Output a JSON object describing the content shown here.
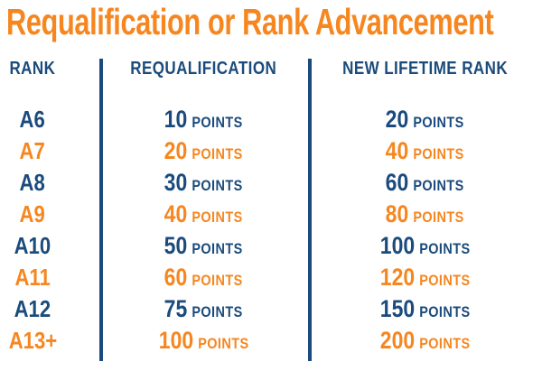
{
  "title": "Requalification or Rank Advancement",
  "colors": {
    "orange": "#F6861F",
    "navy": "#1B4B7C",
    "background": "#FFFFFF"
  },
  "chart_data": {
    "type": "table",
    "title": "Requalification or Rank Advancement",
    "columns": [
      "RANK",
      "REQUALIFICATION",
      "NEW LIFETIME RANK"
    ],
    "unit_label": "POINTS",
    "row_color_pattern": [
      "navy",
      "orange"
    ],
    "rows": [
      {
        "rank": "A6",
        "requalification_points": 10,
        "new_lifetime_rank_points": 20
      },
      {
        "rank": "A7",
        "requalification_points": 20,
        "new_lifetime_rank_points": 40
      },
      {
        "rank": "A8",
        "requalification_points": 30,
        "new_lifetime_rank_points": 60
      },
      {
        "rank": "A9",
        "requalification_points": 40,
        "new_lifetime_rank_points": 80
      },
      {
        "rank": "A10",
        "requalification_points": 50,
        "new_lifetime_rank_points": 100
      },
      {
        "rank": "A11",
        "requalification_points": 60,
        "new_lifetime_rank_points": 120
      },
      {
        "rank": "A12",
        "requalification_points": 75,
        "new_lifetime_rank_points": 150
      },
      {
        "rank": "A13+",
        "requalification_points": 100,
        "new_lifetime_rank_points": 200
      }
    ]
  }
}
